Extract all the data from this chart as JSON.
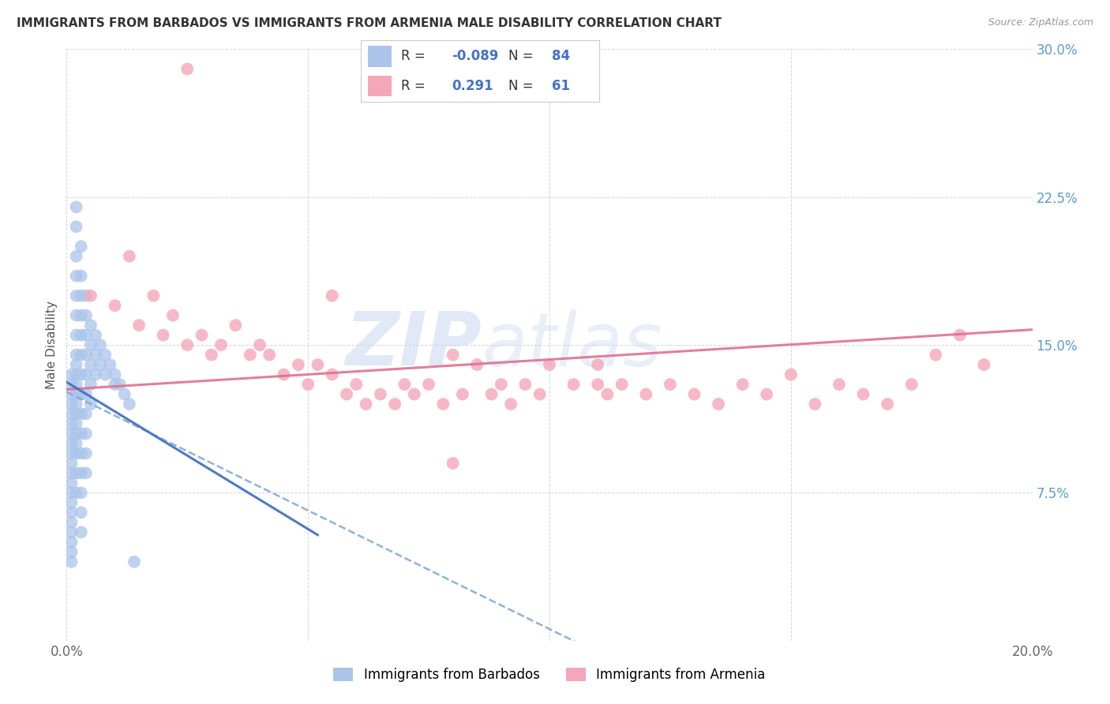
{
  "title": "IMMIGRANTS FROM BARBADOS VS IMMIGRANTS FROM ARMENIA MALE DISABILITY CORRELATION CHART",
  "source": "Source: ZipAtlas.com",
  "ylabel": "Male Disability",
  "xlim": [
    0.0,
    0.2
  ],
  "ylim": [
    0.0,
    0.3
  ],
  "barbados_color": "#aac4ea",
  "armenia_color": "#f4a7b9",
  "barbados_line_solid_color": "#4472c4",
  "barbados_line_dashed_color": "#82aad8",
  "armenia_line_color": "#e07090",
  "barbados_R": -0.089,
  "barbados_N": 84,
  "armenia_R": 0.291,
  "armenia_N": 61,
  "legend_label_barbados": "Immigrants from Barbados",
  "legend_label_armenia": "Immigrants from Armenia",
  "watermark_part1": "ZIP",
  "watermark_part2": "atlas",
  "background_color": "#ffffff",
  "grid_color": "#cccccc",
  "legend_text_color": "#4472c4",
  "barbados_x": [
    0.001,
    0.001,
    0.001,
    0.001,
    0.001,
    0.001,
    0.001,
    0.001,
    0.001,
    0.001,
    0.001,
    0.001,
    0.001,
    0.001,
    0.001,
    0.001,
    0.001,
    0.001,
    0.001,
    0.001,
    0.002,
    0.002,
    0.002,
    0.002,
    0.002,
    0.002,
    0.002,
    0.002,
    0.002,
    0.002,
    0.002,
    0.002,
    0.002,
    0.002,
    0.002,
    0.002,
    0.002,
    0.002,
    0.002,
    0.002,
    0.003,
    0.003,
    0.003,
    0.003,
    0.003,
    0.003,
    0.003,
    0.003,
    0.003,
    0.003,
    0.003,
    0.003,
    0.003,
    0.003,
    0.003,
    0.004,
    0.004,
    0.004,
    0.004,
    0.004,
    0.004,
    0.004,
    0.004,
    0.004,
    0.004,
    0.005,
    0.005,
    0.005,
    0.005,
    0.005,
    0.006,
    0.006,
    0.006,
    0.007,
    0.007,
    0.008,
    0.008,
    0.009,
    0.01,
    0.01,
    0.011,
    0.012,
    0.013,
    0.014
  ],
  "barbados_y": [
    0.135,
    0.13,
    0.125,
    0.12,
    0.115,
    0.11,
    0.105,
    0.1,
    0.095,
    0.09,
    0.085,
    0.08,
    0.075,
    0.07,
    0.065,
    0.06,
    0.055,
    0.05,
    0.045,
    0.04,
    0.22,
    0.21,
    0.195,
    0.185,
    0.175,
    0.165,
    0.155,
    0.145,
    0.14,
    0.135,
    0.13,
    0.125,
    0.12,
    0.115,
    0.11,
    0.105,
    0.1,
    0.095,
    0.085,
    0.075,
    0.2,
    0.185,
    0.175,
    0.165,
    0.155,
    0.145,
    0.135,
    0.125,
    0.115,
    0.105,
    0.095,
    0.085,
    0.075,
    0.065,
    0.055,
    0.175,
    0.165,
    0.155,
    0.145,
    0.135,
    0.125,
    0.115,
    0.105,
    0.095,
    0.085,
    0.16,
    0.15,
    0.14,
    0.13,
    0.12,
    0.155,
    0.145,
    0.135,
    0.15,
    0.14,
    0.145,
    0.135,
    0.14,
    0.135,
    0.13,
    0.13,
    0.125,
    0.12,
    0.04
  ],
  "armenia_x": [
    0.005,
    0.01,
    0.013,
    0.015,
    0.018,
    0.02,
    0.022,
    0.025,
    0.028,
    0.03,
    0.032,
    0.035,
    0.038,
    0.04,
    0.042,
    0.045,
    0.048,
    0.05,
    0.052,
    0.055,
    0.058,
    0.06,
    0.062,
    0.065,
    0.068,
    0.07,
    0.072,
    0.075,
    0.078,
    0.08,
    0.082,
    0.085,
    0.088,
    0.09,
    0.092,
    0.095,
    0.098,
    0.1,
    0.105,
    0.11,
    0.112,
    0.115,
    0.12,
    0.125,
    0.13,
    0.135,
    0.14,
    0.145,
    0.15,
    0.155,
    0.16,
    0.165,
    0.17,
    0.175,
    0.18,
    0.185,
    0.19,
    0.08,
    0.025,
    0.055,
    0.11
  ],
  "armenia_y": [
    0.175,
    0.17,
    0.195,
    0.16,
    0.175,
    0.155,
    0.165,
    0.15,
    0.155,
    0.145,
    0.15,
    0.16,
    0.145,
    0.15,
    0.145,
    0.135,
    0.14,
    0.13,
    0.14,
    0.135,
    0.125,
    0.13,
    0.12,
    0.125,
    0.12,
    0.13,
    0.125,
    0.13,
    0.12,
    0.145,
    0.125,
    0.14,
    0.125,
    0.13,
    0.12,
    0.13,
    0.125,
    0.14,
    0.13,
    0.13,
    0.125,
    0.13,
    0.125,
    0.13,
    0.125,
    0.12,
    0.13,
    0.125,
    0.135,
    0.12,
    0.13,
    0.125,
    0.12,
    0.13,
    0.145,
    0.155,
    0.14,
    0.09,
    0.29,
    0.175,
    0.14
  ]
}
